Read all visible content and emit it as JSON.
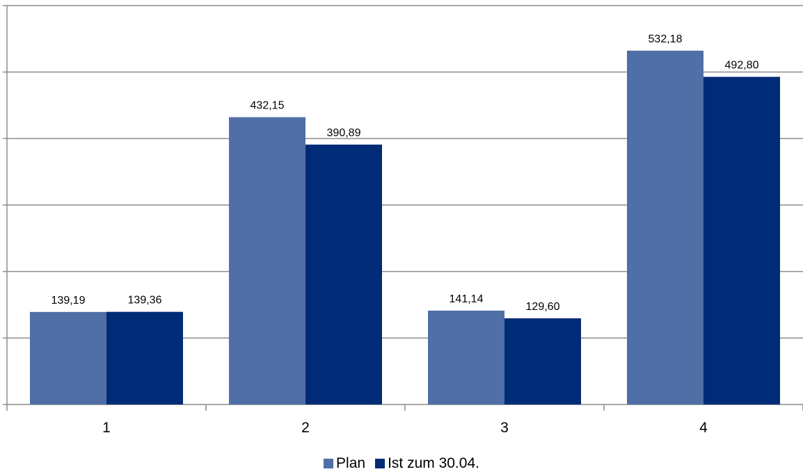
{
  "chart_data": {
    "type": "bar",
    "categories": [
      "1",
      "2",
      "3",
      "4"
    ],
    "series": [
      {
        "name": "Plan",
        "values": [
          139.19,
          432.15,
          141.14,
          532.18
        ],
        "labels": [
          "139,19",
          "432,15",
          "141,14",
          "532,18"
        ],
        "color": "#4F6FA6"
      },
      {
        "name": "Ist zum 30.04.",
        "values": [
          139.36,
          390.89,
          129.6,
          492.8
        ],
        "labels": [
          "139,36",
          "390,89",
          "129,60",
          "492,80"
        ],
        "color": "#002B77"
      }
    ],
    "ylim": [
      0,
      600
    ],
    "grid": true,
    "legend_position": "bottom"
  }
}
